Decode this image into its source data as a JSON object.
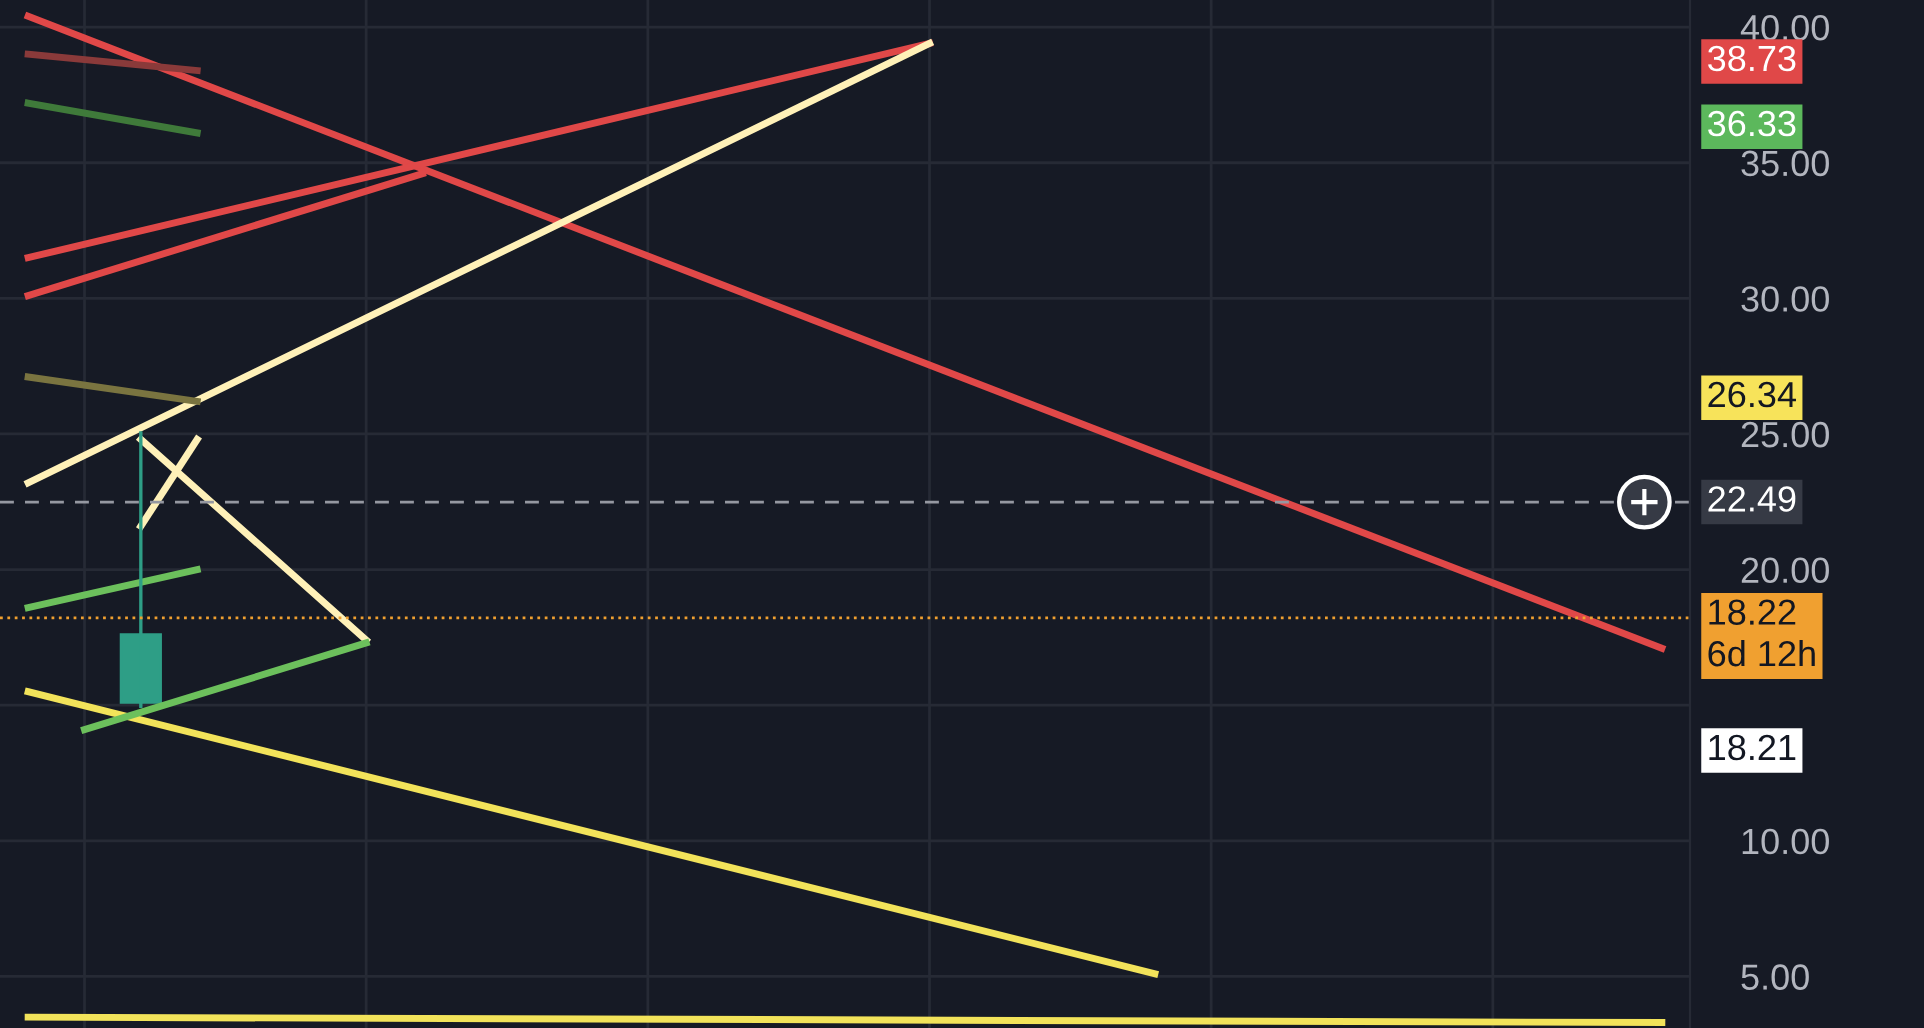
{
  "chart_data": {
    "type": "candlestick",
    "categories": [
      null,
      null,
      null,
      null,
      null,
      null,
      null,
      null,
      null,
      null,
      null,
      null,
      null,
      null,
      null,
      null,
      null,
      null,
      null,
      null,
      null,
      null,
      null,
      null,
      null,
      null,
      null,
      null,
      null,
      null
    ],
    "series": [
      {
        "type": "line",
        "color": "#e04848",
        "values": [
          40.4,
          null,
          null,
          null,
          null,
          null,
          null,
          null,
          null,
          null,
          null,
          null,
          null,
          null,
          null,
          null,
          null,
          null,
          null,
          null,
          null,
          null,
          null,
          null,
          null,
          null,
          null,
          null,
          null,
          17.1
        ]
      },
      {
        "type": "line",
        "color": "#e04848",
        "values": [
          31.5,
          null,
          null,
          null,
          null,
          null,
          null,
          null,
          null,
          null,
          null,
          null,
          null,
          null,
          null,
          null,
          39.4,
          null,
          null,
          null,
          null,
          null,
          null,
          null,
          null,
          null,
          null,
          null,
          null,
          null
        ]
      },
      {
        "type": "line",
        "color": "#e04848",
        "values": [
          30.1,
          null,
          null,
          null,
          null,
          null,
          null,
          34.6,
          null,
          null,
          null,
          null,
          null,
          null,
          null,
          null,
          null,
          null,
          null,
          null,
          null,
          null,
          null,
          null,
          null,
          null,
          null,
          null,
          null,
          null
        ]
      },
      {
        "type": "line",
        "color": "#fff1b8",
        "values": [
          23.2,
          null,
          null,
          null,
          null,
          null,
          null,
          null,
          null,
          null,
          null,
          null,
          null,
          null,
          null,
          null,
          39.4,
          null,
          null,
          null,
          null,
          null,
          null,
          null,
          null,
          null,
          null,
          null,
          null,
          null
        ]
      },
      {
        "type": "line",
        "color": "#fff1b8",
        "values": [
          null,
          null,
          24.8,
          null,
          null,
          null,
          17.4,
          null,
          null,
          null,
          null,
          null,
          null,
          null,
          null,
          null,
          null,
          null,
          null,
          null,
          null,
          null,
          null,
          null,
          null,
          null,
          null,
          null,
          null,
          null
        ]
      },
      {
        "type": "line",
        "color": "#fff1b8",
        "values": [
          null,
          null,
          21.6,
          24.8,
          null,
          null,
          null,
          null,
          null,
          null,
          null,
          null,
          null,
          null,
          null,
          null,
          null,
          null,
          null,
          null,
          null,
          null,
          null,
          null,
          null,
          null,
          null,
          null,
          null,
          null
        ]
      },
      {
        "type": "line",
        "color": "#f2e35a",
        "values": [
          15.5,
          null,
          null,
          null,
          null,
          null,
          null,
          null,
          null,
          null,
          null,
          null,
          null,
          null,
          null,
          null,
          null,
          null,
          null,
          null,
          5.1,
          null,
          null,
          null,
          null,
          null,
          null,
          null,
          null,
          null
        ]
      },
      {
        "type": "line",
        "color": "#f2e35a",
        "values": [
          3.5,
          null,
          null,
          null,
          null,
          null,
          null,
          null,
          null,
          null,
          null,
          null,
          null,
          null,
          null,
          null,
          null,
          null,
          null,
          null,
          null,
          null,
          null,
          null,
          null,
          null,
          null,
          null,
          null,
          3.3
        ]
      },
      {
        "type": "line",
        "color": "#6cc05c",
        "values": [
          null,
          14.1,
          null,
          null,
          null,
          null,
          17.3,
          null,
          null,
          null,
          null,
          null,
          null,
          null,
          null,
          null,
          null,
          null,
          null,
          null,
          null,
          null,
          null,
          null,
          null,
          null,
          null,
          null,
          null,
          null
        ]
      },
      {
        "type": "line",
        "color": "#6cc05c",
        "values": [
          18.6,
          null,
          null,
          20.0,
          null,
          null,
          null,
          null,
          null,
          null,
          null,
          null,
          null,
          null,
          null,
          null,
          null,
          null,
          null,
          null,
          null,
          null,
          null,
          null,
          null,
          null,
          null,
          null,
          null,
          null
        ]
      },
      {
        "type": "line",
        "color": "#8a3a3a",
        "values": [
          39.0,
          null,
          null,
          38.4,
          null,
          null,
          null,
          null,
          null,
          null,
          null,
          null,
          null,
          null,
          null,
          null,
          null,
          null,
          null,
          null,
          null,
          null,
          null,
          null,
          null,
          null,
          null,
          null,
          null,
          null
        ]
      },
      {
        "type": "line",
        "color": "#3f7a3a",
        "values": [
          37.2,
          null,
          null,
          36.1,
          null,
          null,
          null,
          null,
          null,
          null,
          null,
          null,
          null,
          null,
          null,
          null,
          null,
          null,
          null,
          null,
          null,
          null,
          null,
          null,
          null,
          null,
          null,
          null,
          null,
          null
        ]
      },
      {
        "type": "line",
        "color": "#7a7440",
        "values": [
          27.1,
          null,
          null,
          26.2,
          null,
          null,
          null,
          null,
          null,
          null,
          null,
          null,
          null,
          null,
          null,
          null,
          null,
          null,
          null,
          null,
          null,
          null,
          null,
          null,
          null,
          null,
          null,
          null,
          null,
          null
        ]
      }
    ],
    "ohlc": [
      null,
      null,
      [
        15.1,
        25.1,
        14.9,
        17.6
      ],
      null,
      null,
      null,
      null,
      null,
      null,
      null,
      null,
      null,
      null,
      null,
      null,
      null,
      null,
      null,
      null,
      null,
      null,
      null,
      null,
      null,
      null,
      null,
      null,
      null,
      null,
      null
    ],
    "ylim": [
      3.1,
      41.0
    ],
    "yticks": [
      {
        "value": 5,
        "label": "5.00"
      },
      {
        "value": 10,
        "label": "10.00"
      },
      {
        "value": 15,
        "label": null
      },
      {
        "value": 20,
        "label": "20.00"
      },
      {
        "value": 25,
        "label": "25.00"
      },
      {
        "value": 30,
        "label": "30.00"
      },
      {
        "value": 35,
        "label": "35.00"
      },
      {
        "value": 40,
        "label": "40.00"
      }
    ],
    "tick_labels": "y",
    "grid": true,
    "ref_lines": [
      {
        "axis": "y",
        "value": 22.49,
        "label": "22.49",
        "color": "#9598a1",
        "line_style": "dashed"
      },
      {
        "axis": "y",
        "value": 18.22,
        "label": "18.22\n6d 12h",
        "color": "#f0a030",
        "line_style": "dotted"
      }
    ],
    "annotations": [
      "38.73",
      "36.33",
      "26.34",
      "18.21"
    ]
  }
}
